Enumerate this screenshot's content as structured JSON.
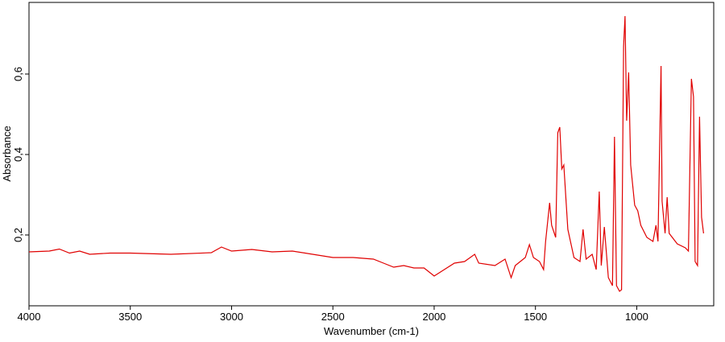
{
  "chart_data": {
    "type": "line",
    "xlabel": "Wavenumber (cm-1)",
    "ylabel": "Absorbance",
    "xlim": [
      4000,
      620
    ],
    "ylim": [
      0.024,
      0.778
    ],
    "xticks": [
      4000,
      3500,
      3000,
      2500,
      2000,
      1500,
      1000
    ],
    "yticks": [
      {
        "value": 0.2,
        "label": "0,2"
      },
      {
        "value": 0.4,
        "label": "0,4"
      },
      {
        "value": 0.6,
        "label": "0,6"
      }
    ],
    "x": [
      4000,
      3900,
      3850,
      3800,
      3750,
      3700,
      3600,
      3500,
      3300,
      3100,
      3050,
      3000,
      2900,
      2800,
      2700,
      2600,
      2500,
      2400,
      2300,
      2250,
      2200,
      2150,
      2100,
      2050,
      2000,
      1950,
      1900,
      1850,
      1800,
      1780,
      1700,
      1650,
      1620,
      1600,
      1550,
      1530,
      1510,
      1480,
      1460,
      1450,
      1430,
      1420,
      1400,
      1390,
      1380,
      1370,
      1360,
      1340,
      1310,
      1280,
      1265,
      1250,
      1220,
      1200,
      1185,
      1175,
      1160,
      1140,
      1120,
      1110,
      1100,
      1085,
      1075,
      1065,
      1058,
      1050,
      1040,
      1030,
      1010,
      995,
      980,
      950,
      920,
      905,
      895,
      880,
      875,
      860,
      850,
      840,
      800,
      760,
      745,
      730,
      720,
      712,
      700,
      690,
      680,
      670
    ],
    "series": [
      {
        "color": "#e00000",
        "values": [
          0.158,
          0.16,
          0.165,
          0.155,
          0.16,
          0.152,
          0.155,
          0.155,
          0.152,
          0.156,
          0.17,
          0.16,
          0.164,
          0.158,
          0.16,
          0.152,
          0.144,
          0.144,
          0.14,
          0.13,
          0.12,
          0.124,
          0.118,
          0.118,
          0.098,
          0.114,
          0.13,
          0.134,
          0.152,
          0.13,
          0.124,
          0.14,
          0.094,
          0.124,
          0.144,
          0.176,
          0.144,
          0.134,
          0.114,
          0.184,
          0.28,
          0.224,
          0.194,
          0.454,
          0.468,
          0.364,
          0.374,
          0.214,
          0.144,
          0.134,
          0.214,
          0.14,
          0.152,
          0.114,
          0.308,
          0.124,
          0.22,
          0.094,
          0.074,
          0.444,
          0.074,
          0.06,
          0.064,
          0.668,
          0.744,
          0.484,
          0.604,
          0.374,
          0.274,
          0.26,
          0.224,
          0.194,
          0.184,
          0.224,
          0.184,
          0.62,
          0.284,
          0.204,
          0.294,
          0.204,
          0.178,
          0.168,
          0.16,
          0.588,
          0.544,
          0.134,
          0.124,
          0.494,
          0.244,
          0.204
        ]
      }
    ]
  }
}
